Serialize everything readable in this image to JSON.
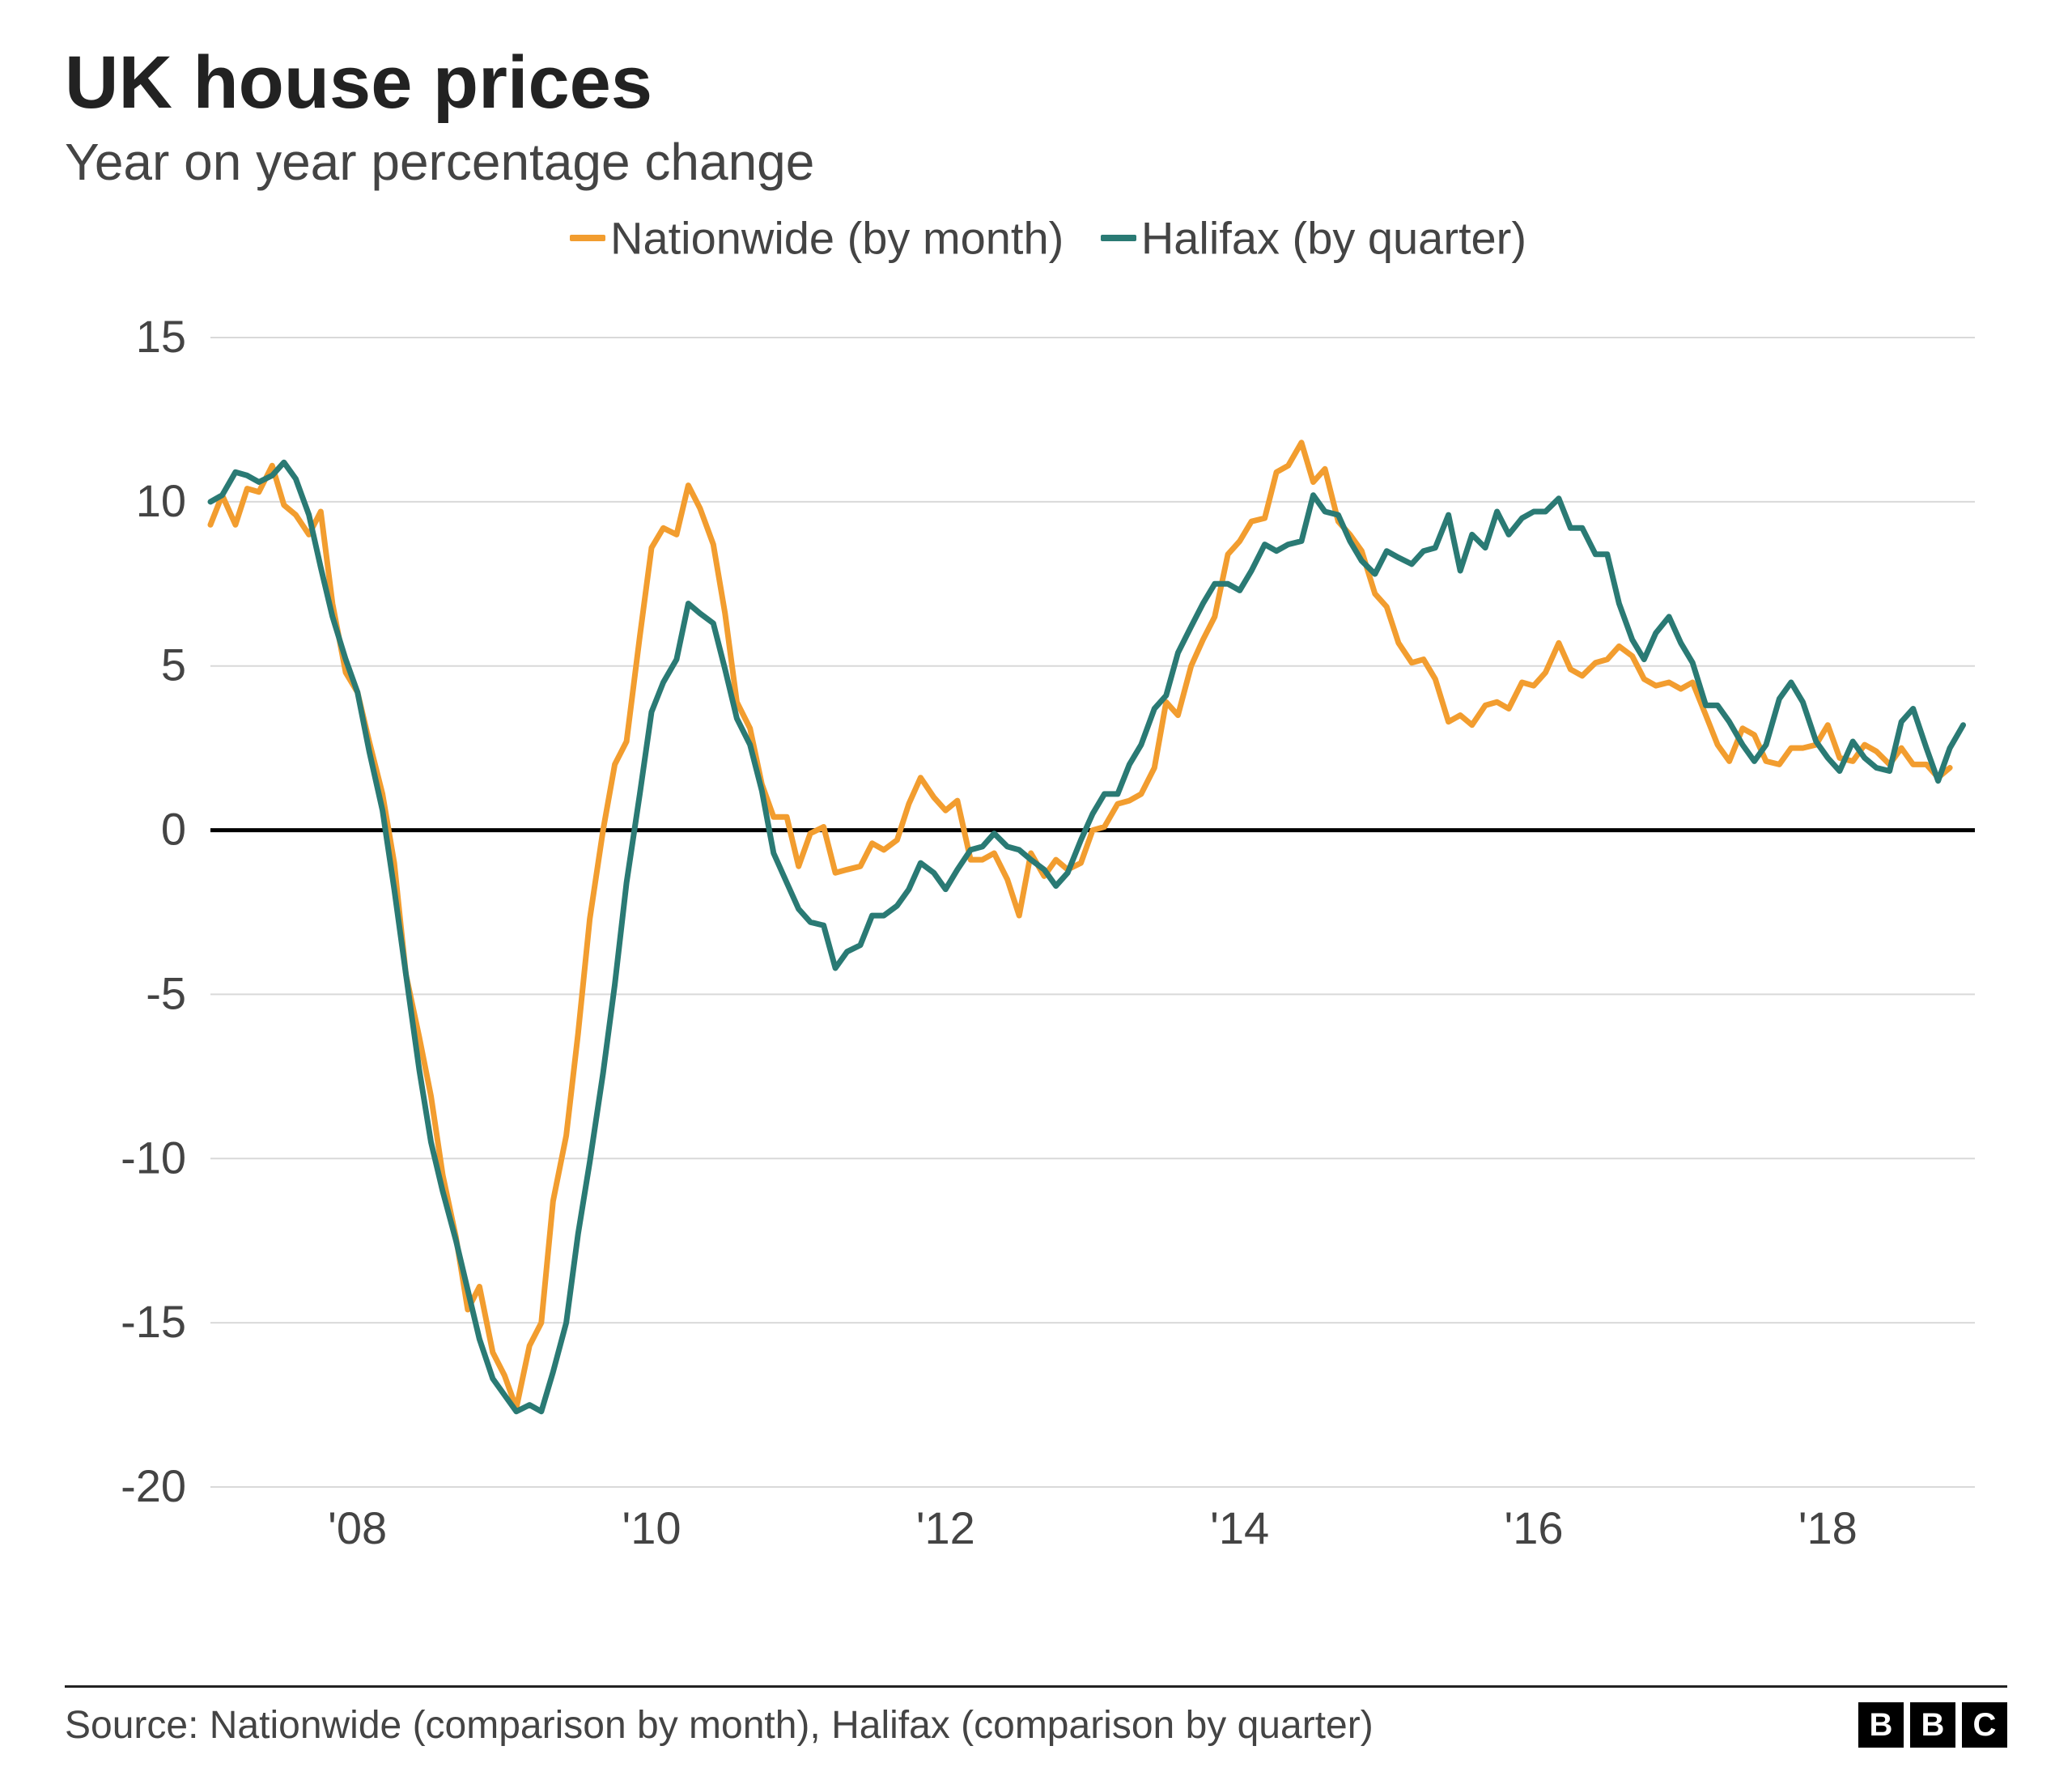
{
  "title": "UK house prices",
  "subtitle": "Year on year percentage change",
  "source": "Source: Nationwide (comparison by month), Halifax (comparison by quarter)",
  "logo_letters": [
    "B",
    "B",
    "C"
  ],
  "chart": {
    "type": "line",
    "background_color": "#ffffff",
    "grid_color": "#d9d9d9",
    "axis_color": "#222222",
    "zero_line_color": "#000000",
    "zero_line_width": 5,
    "line_width": 7,
    "x": {
      "min": 2007.0,
      "max": 2019.0,
      "ticks": [
        2008,
        2010,
        2012,
        2014,
        2016,
        2018
      ],
      "tick_labels": [
        "'08",
        "'10",
        "'12",
        "'14",
        "'16",
        "'18"
      ]
    },
    "y": {
      "min": -20,
      "max": 15,
      "ticks": [
        -20,
        -15,
        -10,
        -5,
        0,
        5,
        10,
        15
      ],
      "tick_labels": [
        "-20",
        "-15",
        "-10",
        "-5",
        "0",
        "5",
        "10",
        "15"
      ]
    },
    "legend": [
      {
        "label": "Nationwide (by month)",
        "color": "#f29d2f"
      },
      {
        "label": "Halifax (by quarter)",
        "color": "#2a7a74"
      }
    ],
    "series": [
      {
        "name": "Nationwide (by month)",
        "color": "#f29d2f",
        "points": [
          [
            2007.0,
            9.3
          ],
          [
            2007.08,
            10.2
          ],
          [
            2007.17,
            9.3
          ],
          [
            2007.25,
            10.4
          ],
          [
            2007.33,
            10.3
          ],
          [
            2007.42,
            11.1
          ],
          [
            2007.5,
            9.9
          ],
          [
            2007.58,
            9.6
          ],
          [
            2007.67,
            9.0
          ],
          [
            2007.75,
            9.7
          ],
          [
            2007.83,
            6.9
          ],
          [
            2007.92,
            4.8
          ],
          [
            2008.0,
            4.2
          ],
          [
            2008.08,
            2.7
          ],
          [
            2008.17,
            1.1
          ],
          [
            2008.25,
            -1.0
          ],
          [
            2008.33,
            -4.4
          ],
          [
            2008.42,
            -6.3
          ],
          [
            2008.5,
            -8.1
          ],
          [
            2008.58,
            -10.5
          ],
          [
            2008.67,
            -12.4
          ],
          [
            2008.75,
            -14.6
          ],
          [
            2008.83,
            -13.9
          ],
          [
            2008.92,
            -15.9
          ],
          [
            2009.0,
            -16.6
          ],
          [
            2009.08,
            -17.6
          ],
          [
            2009.17,
            -15.7
          ],
          [
            2009.25,
            -15.0
          ],
          [
            2009.33,
            -11.3
          ],
          [
            2009.42,
            -9.3
          ],
          [
            2009.5,
            -6.2
          ],
          [
            2009.58,
            -2.7
          ],
          [
            2009.67,
            0.0
          ],
          [
            2009.75,
            2.0
          ],
          [
            2009.83,
            2.7
          ],
          [
            2009.92,
            5.9
          ],
          [
            2010.0,
            8.6
          ],
          [
            2010.08,
            9.2
          ],
          [
            2010.17,
            9.0
          ],
          [
            2010.25,
            10.5
          ],
          [
            2010.33,
            9.8
          ],
          [
            2010.42,
            8.7
          ],
          [
            2010.5,
            6.6
          ],
          [
            2010.58,
            3.9
          ],
          [
            2010.67,
            3.1
          ],
          [
            2010.75,
            1.4
          ],
          [
            2010.83,
            0.4
          ],
          [
            2010.92,
            0.4
          ],
          [
            2011.0,
            -1.1
          ],
          [
            2011.08,
            -0.1
          ],
          [
            2011.17,
            0.1
          ],
          [
            2011.25,
            -1.3
          ],
          [
            2011.33,
            -1.2
          ],
          [
            2011.42,
            -1.1
          ],
          [
            2011.5,
            -0.4
          ],
          [
            2011.58,
            -0.6
          ],
          [
            2011.67,
            -0.3
          ],
          [
            2011.75,
            0.8
          ],
          [
            2011.83,
            1.6
          ],
          [
            2011.92,
            1.0
          ],
          [
            2012.0,
            0.6
          ],
          [
            2012.08,
            0.9
          ],
          [
            2012.17,
            -0.9
          ],
          [
            2012.25,
            -0.9
          ],
          [
            2012.33,
            -0.7
          ],
          [
            2012.42,
            -1.5
          ],
          [
            2012.5,
            -2.6
          ],
          [
            2012.58,
            -0.7
          ],
          [
            2012.67,
            -1.4
          ],
          [
            2012.75,
            -0.9
          ],
          [
            2012.83,
            -1.2
          ],
          [
            2012.92,
            -1.0
          ],
          [
            2013.0,
            0.0
          ],
          [
            2013.08,
            0.1
          ],
          [
            2013.17,
            0.8
          ],
          [
            2013.25,
            0.9
          ],
          [
            2013.33,
            1.1
          ],
          [
            2013.42,
            1.9
          ],
          [
            2013.5,
            3.9
          ],
          [
            2013.58,
            3.5
          ],
          [
            2013.67,
            5.0
          ],
          [
            2013.75,
            5.8
          ],
          [
            2013.83,
            6.5
          ],
          [
            2013.92,
            8.4
          ],
          [
            2014.0,
            8.8
          ],
          [
            2014.08,
            9.4
          ],
          [
            2014.17,
            9.5
          ],
          [
            2014.25,
            10.9
          ],
          [
            2014.33,
            11.1
          ],
          [
            2014.42,
            11.8
          ],
          [
            2014.5,
            10.6
          ],
          [
            2014.58,
            11.0
          ],
          [
            2014.67,
            9.4
          ],
          [
            2014.75,
            9.0
          ],
          [
            2014.83,
            8.5
          ],
          [
            2014.92,
            7.2
          ],
          [
            2015.0,
            6.8
          ],
          [
            2015.08,
            5.7
          ],
          [
            2015.17,
            5.1
          ],
          [
            2015.25,
            5.2
          ],
          [
            2015.33,
            4.6
          ],
          [
            2015.42,
            3.3
          ],
          [
            2015.5,
            3.5
          ],
          [
            2015.58,
            3.2
          ],
          [
            2015.67,
            3.8
          ],
          [
            2015.75,
            3.9
          ],
          [
            2015.83,
            3.7
          ],
          [
            2015.92,
            4.5
          ],
          [
            2016.0,
            4.4
          ],
          [
            2016.08,
            4.8
          ],
          [
            2016.17,
            5.7
          ],
          [
            2016.25,
            4.9
          ],
          [
            2016.33,
            4.7
          ],
          [
            2016.42,
            5.1
          ],
          [
            2016.5,
            5.2
          ],
          [
            2016.58,
            5.6
          ],
          [
            2016.67,
            5.3
          ],
          [
            2016.75,
            4.6
          ],
          [
            2016.83,
            4.4
          ],
          [
            2016.92,
            4.5
          ],
          [
            2017.0,
            4.3
          ],
          [
            2017.08,
            4.5
          ],
          [
            2017.17,
            3.5
          ],
          [
            2017.25,
            2.6
          ],
          [
            2017.33,
            2.1
          ],
          [
            2017.42,
            3.1
          ],
          [
            2017.5,
            2.9
          ],
          [
            2017.58,
            2.1
          ],
          [
            2017.67,
            2.0
          ],
          [
            2017.75,
            2.5
          ],
          [
            2017.83,
            2.5
          ],
          [
            2017.92,
            2.6
          ],
          [
            2018.0,
            3.2
          ],
          [
            2018.08,
            2.2
          ],
          [
            2018.17,
            2.1
          ],
          [
            2018.25,
            2.6
          ],
          [
            2018.33,
            2.4
          ],
          [
            2018.42,
            2.0
          ],
          [
            2018.5,
            2.5
          ],
          [
            2018.58,
            2.0
          ],
          [
            2018.67,
            2.0
          ],
          [
            2018.75,
            1.6
          ],
          [
            2018.83,
            1.9
          ]
        ]
      },
      {
        "name": "Halifax (by quarter)",
        "color": "#2a7a74",
        "points": [
          [
            2007.0,
            10.0
          ],
          [
            2007.08,
            10.2
          ],
          [
            2007.17,
            10.9
          ],
          [
            2007.25,
            10.8
          ],
          [
            2007.33,
            10.6
          ],
          [
            2007.42,
            10.8
          ],
          [
            2007.5,
            11.2
          ],
          [
            2007.58,
            10.7
          ],
          [
            2007.67,
            9.6
          ],
          [
            2007.75,
            8.0
          ],
          [
            2007.83,
            6.5
          ],
          [
            2007.92,
            5.2
          ],
          [
            2008.0,
            4.2
          ],
          [
            2008.08,
            2.4
          ],
          [
            2008.17,
            0.6
          ],
          [
            2008.25,
            -1.8
          ],
          [
            2008.33,
            -4.4
          ],
          [
            2008.42,
            -7.3
          ],
          [
            2008.5,
            -9.5
          ],
          [
            2008.58,
            -11.0
          ],
          [
            2008.67,
            -12.5
          ],
          [
            2008.75,
            -14.0
          ],
          [
            2008.83,
            -15.5
          ],
          [
            2008.92,
            -16.7
          ],
          [
            2009.0,
            -17.2
          ],
          [
            2009.08,
            -17.7
          ],
          [
            2009.17,
            -17.5
          ],
          [
            2009.25,
            -17.7
          ],
          [
            2009.33,
            -16.5
          ],
          [
            2009.42,
            -15.0
          ],
          [
            2009.5,
            -12.3
          ],
          [
            2009.58,
            -10.1
          ],
          [
            2009.67,
            -7.4
          ],
          [
            2009.75,
            -4.7
          ],
          [
            2009.83,
            -1.6
          ],
          [
            2009.92,
            1.1
          ],
          [
            2010.0,
            3.6
          ],
          [
            2010.08,
            4.5
          ],
          [
            2010.17,
            5.2
          ],
          [
            2010.25,
            6.9
          ],
          [
            2010.33,
            6.6
          ],
          [
            2010.42,
            6.3
          ],
          [
            2010.5,
            4.9
          ],
          [
            2010.58,
            3.4
          ],
          [
            2010.67,
            2.6
          ],
          [
            2010.75,
            1.2
          ],
          [
            2010.83,
            -0.7
          ],
          [
            2010.92,
            -1.6
          ],
          [
            2011.0,
            -2.4
          ],
          [
            2011.08,
            -2.8
          ],
          [
            2011.17,
            -2.9
          ],
          [
            2011.25,
            -4.2
          ],
          [
            2011.33,
            -3.7
          ],
          [
            2011.42,
            -3.5
          ],
          [
            2011.5,
            -2.6
          ],
          [
            2011.58,
            -2.6
          ],
          [
            2011.67,
            -2.3
          ],
          [
            2011.75,
            -1.8
          ],
          [
            2011.83,
            -1.0
          ],
          [
            2011.92,
            -1.3
          ],
          [
            2012.0,
            -1.8
          ],
          [
            2012.08,
            -1.2
          ],
          [
            2012.17,
            -0.6
          ],
          [
            2012.25,
            -0.5
          ],
          [
            2012.33,
            -0.1
          ],
          [
            2012.42,
            -0.5
          ],
          [
            2012.5,
            -0.6
          ],
          [
            2012.58,
            -0.9
          ],
          [
            2012.67,
            -1.2
          ],
          [
            2012.75,
            -1.7
          ],
          [
            2012.83,
            -1.3
          ],
          [
            2012.92,
            -0.3
          ],
          [
            2013.0,
            0.5
          ],
          [
            2013.08,
            1.1
          ],
          [
            2013.17,
            1.1
          ],
          [
            2013.25,
            2.0
          ],
          [
            2013.33,
            2.6
          ],
          [
            2013.42,
            3.7
          ],
          [
            2013.5,
            4.1
          ],
          [
            2013.58,
            5.4
          ],
          [
            2013.67,
            6.2
          ],
          [
            2013.75,
            6.9
          ],
          [
            2013.83,
            7.5
          ],
          [
            2013.92,
            7.5
          ],
          [
            2014.0,
            7.3
          ],
          [
            2014.08,
            7.9
          ],
          [
            2014.17,
            8.7
          ],
          [
            2014.25,
            8.5
          ],
          [
            2014.33,
            8.7
          ],
          [
            2014.42,
            8.8
          ],
          [
            2014.5,
            10.2
          ],
          [
            2014.58,
            9.7
          ],
          [
            2014.67,
            9.6
          ],
          [
            2014.75,
            8.8
          ],
          [
            2014.83,
            8.2
          ],
          [
            2014.92,
            7.8
          ],
          [
            2015.0,
            8.5
          ],
          [
            2015.08,
            8.3
          ],
          [
            2015.17,
            8.1
          ],
          [
            2015.25,
            8.5
          ],
          [
            2015.33,
            8.6
          ],
          [
            2015.42,
            9.6
          ],
          [
            2015.5,
            7.9
          ],
          [
            2015.58,
            9.0
          ],
          [
            2015.67,
            8.6
          ],
          [
            2015.75,
            9.7
          ],
          [
            2015.83,
            9.0
          ],
          [
            2015.92,
            9.5
          ],
          [
            2016.0,
            9.7
          ],
          [
            2016.08,
            9.7
          ],
          [
            2016.17,
            10.1
          ],
          [
            2016.25,
            9.2
          ],
          [
            2016.33,
            9.2
          ],
          [
            2016.42,
            8.4
          ],
          [
            2016.5,
            8.4
          ],
          [
            2016.58,
            6.9
          ],
          [
            2016.67,
            5.8
          ],
          [
            2016.75,
            5.2
          ],
          [
            2016.83,
            6.0
          ],
          [
            2016.92,
            6.5
          ],
          [
            2017.0,
            5.7
          ],
          [
            2017.08,
            5.1
          ],
          [
            2017.17,
            3.8
          ],
          [
            2017.25,
            3.8
          ],
          [
            2017.33,
            3.3
          ],
          [
            2017.42,
            2.6
          ],
          [
            2017.5,
            2.1
          ],
          [
            2017.58,
            2.6
          ],
          [
            2017.67,
            4.0
          ],
          [
            2017.75,
            4.5
          ],
          [
            2017.83,
            3.9
          ],
          [
            2017.92,
            2.7
          ],
          [
            2018.0,
            2.2
          ],
          [
            2018.08,
            1.8
          ],
          [
            2018.17,
            2.7
          ],
          [
            2018.25,
            2.2
          ],
          [
            2018.33,
            1.9
          ],
          [
            2018.42,
            1.8
          ],
          [
            2018.5,
            3.3
          ],
          [
            2018.58,
            3.7
          ],
          [
            2018.67,
            2.5
          ],
          [
            2018.75,
            1.5
          ],
          [
            2018.83,
            2.5
          ],
          [
            2018.92,
            3.2
          ]
        ]
      }
    ]
  }
}
